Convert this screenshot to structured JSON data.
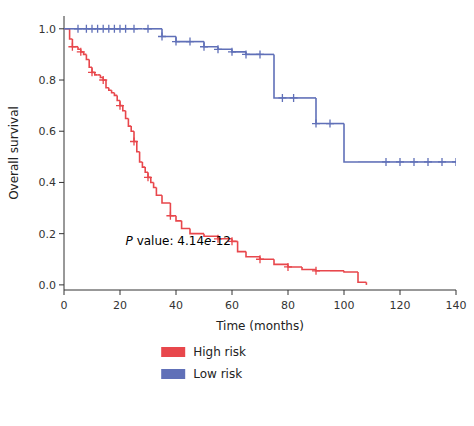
{
  "chart_data": {
    "type": "step",
    "xlabel": "Time (months)",
    "ylabel": "Overall survival",
    "xlim": [
      0,
      140
    ],
    "ylim": [
      -0.02,
      1.05
    ],
    "xticks": [
      0,
      20,
      40,
      60,
      80,
      100,
      120,
      140
    ],
    "yticks": [
      {
        "value": 0.0,
        "label": "0.0"
      },
      0.2,
      0.4,
      0.6,
      0.8,
      {
        "value": 1.0,
        "label": "1.0"
      }
    ],
    "grid": false,
    "legend": "bottom",
    "annotations": [
      {
        "text": "P value: 4.14e-12",
        "x": 22,
        "y": 0.155
      }
    ],
    "series": [
      {
        "name": "High risk",
        "color": "#e8474c",
        "x": [
          0,
          2,
          3,
          4,
          5,
          6,
          7,
          8,
          9,
          10,
          11,
          12,
          13,
          14,
          15,
          16,
          17,
          18,
          19,
          20,
          21,
          22,
          23,
          24,
          25,
          26,
          27,
          28,
          29,
          30,
          31,
          32,
          33,
          35,
          38,
          40,
          42,
          45,
          50,
          55,
          60,
          62,
          65,
          70,
          75,
          80,
          85,
          90,
          95,
          100,
          105,
          108
        ],
        "values": [
          1.0,
          0.96,
          0.93,
          0.93,
          0.92,
          0.91,
          0.9,
          0.88,
          0.85,
          0.83,
          0.82,
          0.82,
          0.81,
          0.8,
          0.77,
          0.76,
          0.75,
          0.74,
          0.72,
          0.7,
          0.68,
          0.65,
          0.62,
          0.6,
          0.56,
          0.52,
          0.48,
          0.46,
          0.44,
          0.42,
          0.4,
          0.38,
          0.35,
          0.32,
          0.27,
          0.25,
          0.22,
          0.2,
          0.19,
          0.18,
          0.17,
          0.13,
          0.11,
          0.1,
          0.08,
          0.07,
          0.06,
          0.055,
          0.055,
          0.05,
          0.01,
          0.0
        ],
        "censors": {
          "x": [
            3,
            6,
            10,
            14,
            20,
            25,
            30,
            38,
            55,
            60,
            70,
            80,
            90
          ],
          "values": [
            0.93,
            0.91,
            0.83,
            0.8,
            0.7,
            0.56,
            0.42,
            0.27,
            0.18,
            0.17,
            0.1,
            0.07,
            0.055
          ]
        }
      },
      {
        "name": "Low risk",
        "color": "#6070b8",
        "x": [
          0,
          5,
          8,
          10,
          12,
          14,
          16,
          18,
          20,
          22,
          25,
          28,
          30,
          35,
          40,
          45,
          50,
          55,
          60,
          65,
          70,
          75,
          78,
          82,
          90,
          95,
          100,
          105,
          110,
          115,
          120,
          125,
          130,
          135,
          140
        ],
        "values": [
          1.0,
          1.0,
          1.0,
          1.0,
          1.0,
          1.0,
          1.0,
          1.0,
          1.0,
          1.0,
          1.0,
          1.0,
          1.0,
          0.97,
          0.95,
          0.95,
          0.93,
          0.92,
          0.91,
          0.9,
          0.9,
          0.73,
          0.73,
          0.73,
          0.63,
          0.63,
          0.48,
          0.48,
          0.48,
          0.48,
          0.48,
          0.48,
          0.48,
          0.48,
          0.48
        ],
        "censors": {
          "x": [
            5,
            8,
            10,
            12,
            14,
            16,
            18,
            20,
            22,
            25,
            30,
            35,
            40,
            45,
            50,
            55,
            60,
            65,
            70,
            78,
            82,
            90,
            95,
            115,
            120,
            125,
            130,
            135,
            140
          ],
          "values": [
            1.0,
            1.0,
            1.0,
            1.0,
            1.0,
            1.0,
            1.0,
            1.0,
            1.0,
            1.0,
            1.0,
            0.97,
            0.95,
            0.95,
            0.93,
            0.92,
            0.91,
            0.9,
            0.9,
            0.73,
            0.73,
            0.63,
            0.63,
            0.48,
            0.48,
            0.48,
            0.48,
            0.48,
            0.48
          ]
        }
      }
    ]
  }
}
